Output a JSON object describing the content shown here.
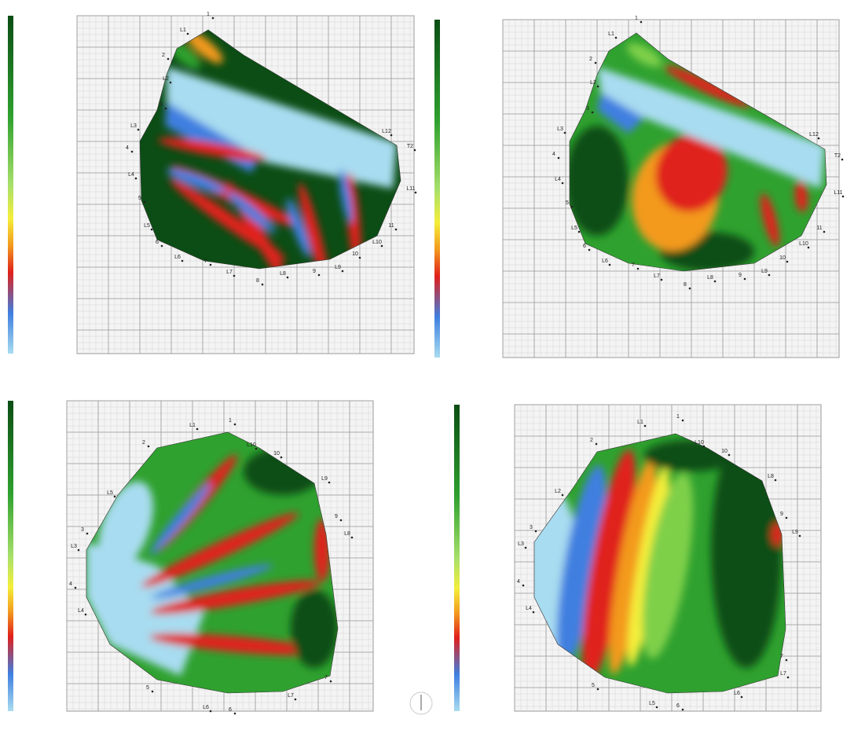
{
  "panels": [
    {
      "point_labels": [
        "1",
        "L1",
        "2",
        "L2",
        "3",
        "L3",
        "4",
        "L4",
        "5",
        "L5",
        "6",
        "L6",
        "7",
        "L7",
        "8",
        "L8",
        "9",
        "L9",
        "10",
        "L10",
        "11",
        "L11",
        "T2",
        "L12"
      ]
    },
    {
      "point_labels": [
        "1",
        "L1",
        "2",
        "L2",
        "3",
        "L3",
        "4",
        "L4",
        "5",
        "L5",
        "6",
        "L6",
        "7",
        "L7",
        "8",
        "L8",
        "9",
        "L9",
        "10",
        "L10",
        "11",
        "L11",
        "T2",
        "L12"
      ]
    },
    {
      "point_labels": [
        "L1",
        "1",
        "2",
        "L10",
        "10",
        "L5",
        "L9",
        "9",
        "L8",
        "3",
        "L3",
        "4",
        "L4",
        "5",
        "L6",
        "6",
        "L7",
        "7"
      ]
    },
    {
      "point_labels": [
        "L1",
        "1",
        "2",
        "L10",
        "10",
        "L2",
        "L8",
        "9",
        "L9",
        "3",
        "L3",
        "4",
        "L4",
        "5",
        "L5",
        "6",
        "L6",
        "7",
        "L7"
      ]
    }
  ]
}
